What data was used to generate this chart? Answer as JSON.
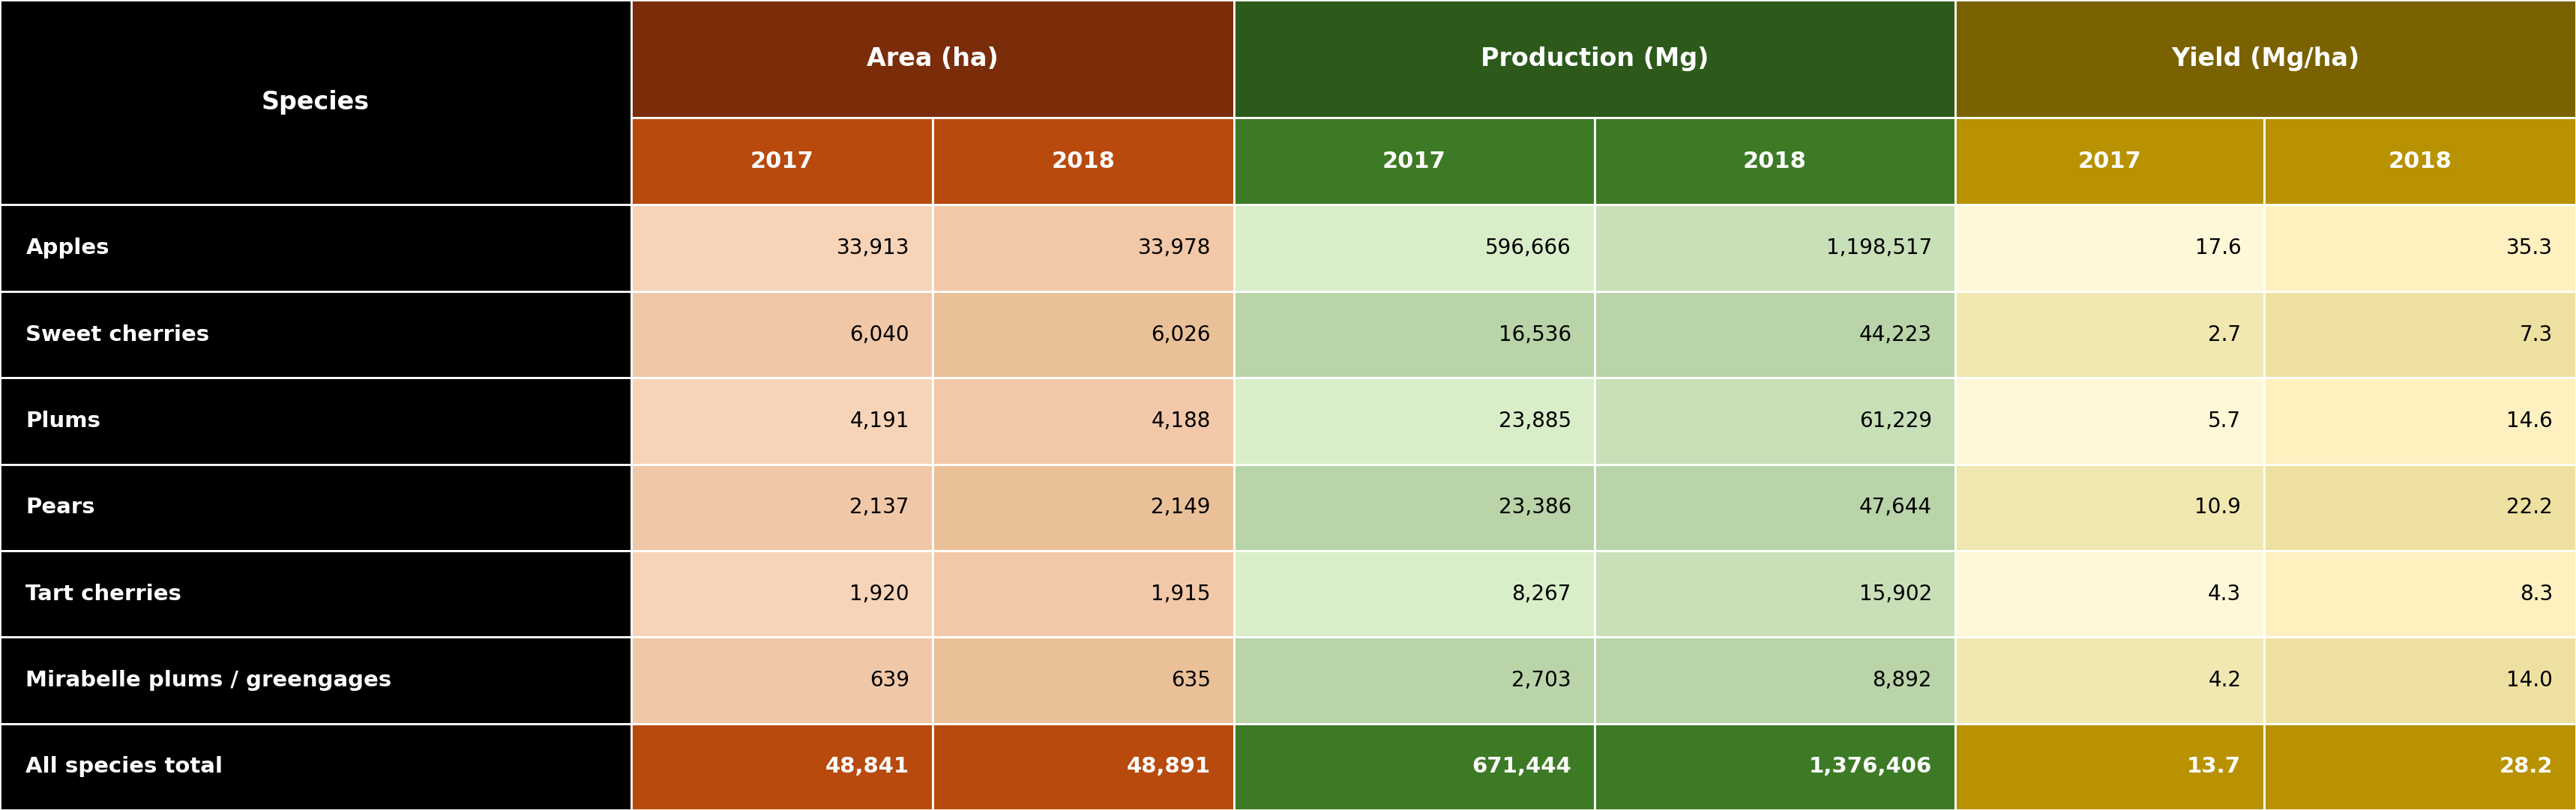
{
  "species": [
    "Apples",
    "Sweet cherries",
    "Plums",
    "Pears",
    "Tart cherries",
    "Mirabelle plums / greengages",
    "All species total"
  ],
  "area_2017": [
    "33,913",
    "6,040",
    "4,191",
    "2,137",
    "1,920",
    "639",
    "48,841"
  ],
  "area_2018": [
    "33,978",
    "6,026",
    "4,188",
    "2,149",
    "1,915",
    "635",
    "48,891"
  ],
  "prod_2017": [
    "596,666",
    "16,536",
    "23,885",
    "23,386",
    "8,267",
    "2,703",
    "671,444"
  ],
  "prod_2018": [
    "1,198,517",
    "44,223",
    "61,229",
    "47,644",
    "15,902",
    "8,892",
    "1,376,406"
  ],
  "yield_2017": [
    "17.6",
    "2.7",
    "5.7",
    "10.9",
    "4.3",
    "4.2",
    "13.7"
  ],
  "yield_2018": [
    "35.3",
    "7.3",
    "14.6",
    "22.2",
    "8.3",
    "14.0",
    "28.2"
  ],
  "header1_label": "Area (ha)",
  "header2_label": "Production (Mg)",
  "header3_label": "Yield (Mg/ha)",
  "year_label": "2017",
  "year_label2": "2018",
  "species_label": "Species",
  "col_header1_bg": "#7B2D0A",
  "col_header2_bg": "#2D5A1B",
  "col_header3_bg": "#7A6200",
  "col_sub1_bg": "#B84A0E",
  "col_sub2_bg": "#3D7A25",
  "col_sub3_bg": "#B89200",
  "area_2017_cell_bg_odd": "#F7D4B8",
  "area_2017_cell_bg_even": "#F0C8A8",
  "area_2018_cell_bg_odd": "#F2C8A8",
  "area_2018_cell_bg_even": "#EAC098",
  "prod_2017_cell_bg_odd": "#D8EEC8",
  "prod_2017_cell_bg_even": "#C8E0B8",
  "prod_2018_cell_bg_odd": "#C8E0B8",
  "prod_2018_cell_bg_even": "#B8D4A8",
  "yield_2017_cell_bg_odd": "#FFF8D8",
  "yield_2017_cell_bg_even": "#F0E8B0",
  "yield_2018_cell_bg_odd": "#FFF0C0",
  "yield_2018_cell_bg_even": "#EEE0A0",
  "species_cell_bg": "#000000",
  "total_row_species_bg": "#000000",
  "header_text_color": "#FFFFFF",
  "species_text_color": "#FFFFFF",
  "data_text_color": "#000000",
  "total_text_color": "#FFFFFF",
  "border_color": "#FFFFFF",
  "fig_bg": "#000000"
}
